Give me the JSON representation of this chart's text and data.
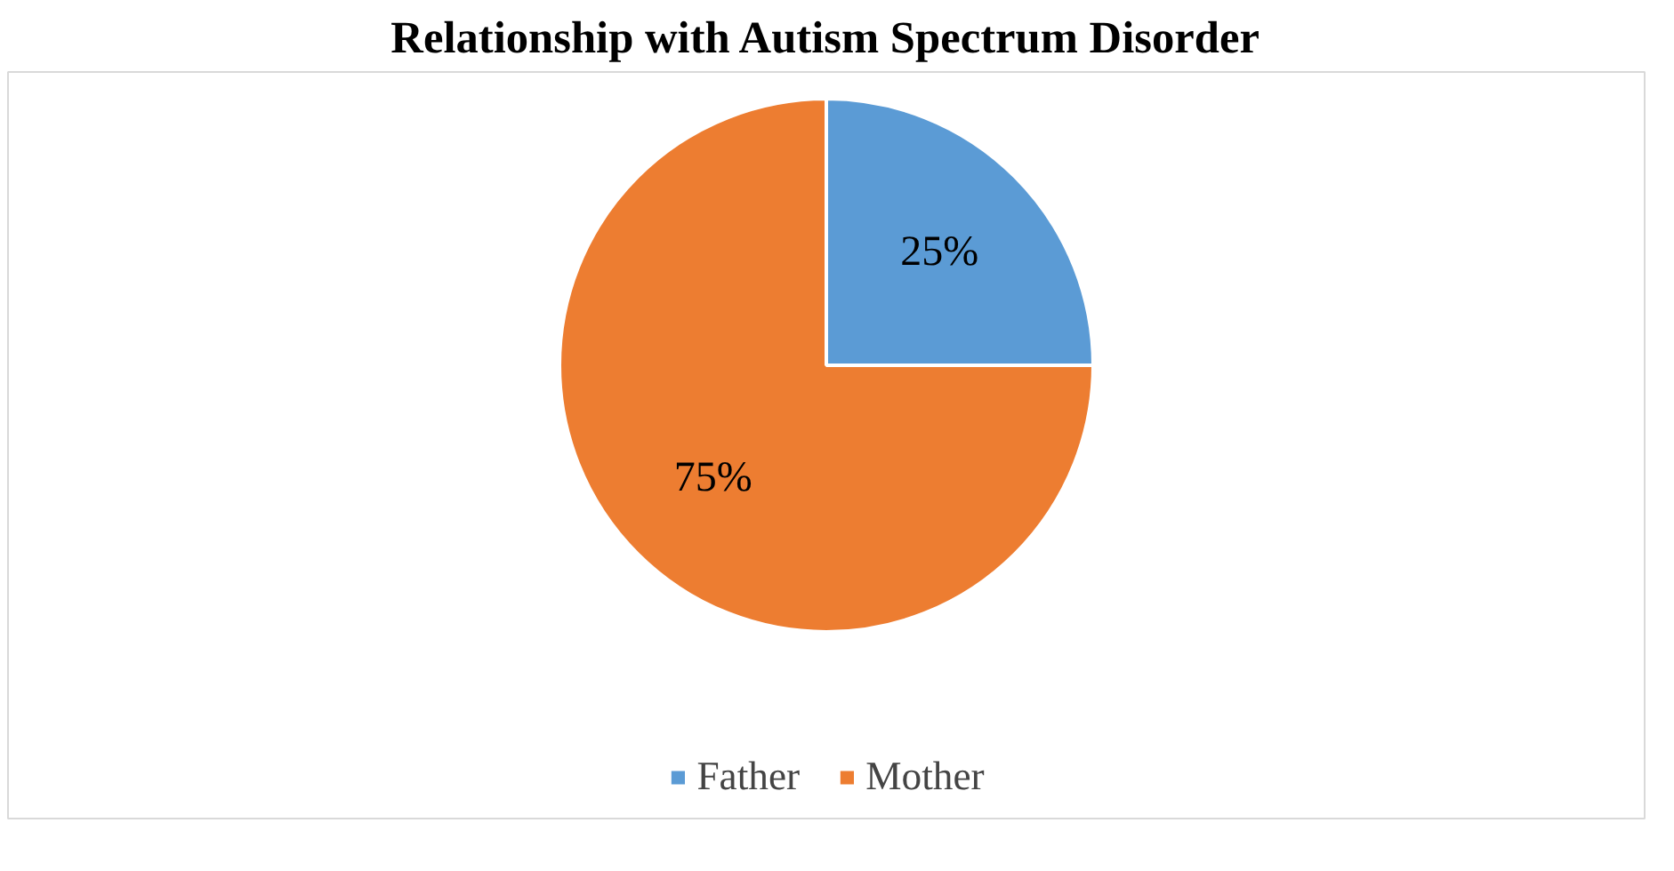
{
  "chart_data": {
    "type": "pie",
    "title": "Relationship with Autism Spectrum Disorder",
    "categories": [
      "Father",
      "Mother"
    ],
    "values": [
      25,
      75
    ],
    "colors": [
      "#5b9bd5",
      "#ed7d31"
    ],
    "value_labels": [
      "25%",
      "75%"
    ],
    "legend": "bottom"
  }
}
